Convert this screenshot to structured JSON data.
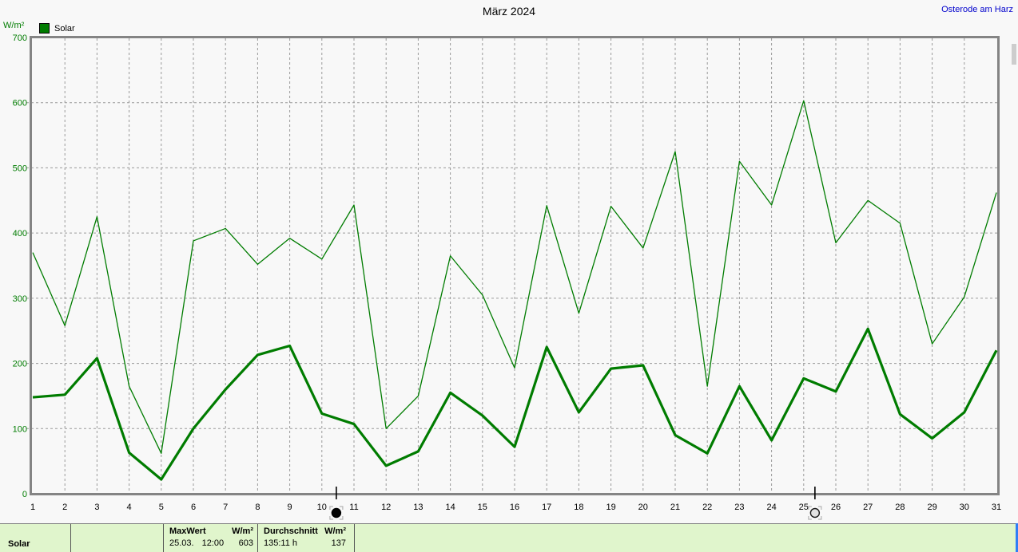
{
  "header": {
    "title": "März 2024",
    "station": "Osterode am Harz"
  },
  "legend": {
    "label": "Solar"
  },
  "axis": {
    "unit": "W/m²"
  },
  "chart_data": {
    "type": "line",
    "title": "März 2024",
    "ylabel": "W/m²",
    "xlabel": "",
    "ylim": [
      0,
      700
    ],
    "y_tick_step": 100,
    "grid": true,
    "legend_position": "top-left",
    "x": [
      1,
      2,
      3,
      4,
      5,
      6,
      7,
      8,
      9,
      10,
      11,
      12,
      13,
      14,
      15,
      16,
      17,
      18,
      19,
      20,
      21,
      22,
      23,
      24,
      25,
      26,
      27,
      28,
      29,
      30,
      31
    ],
    "series": [
      {
        "name": "Solar Maximum",
        "style": "thin",
        "color": "#007c00",
        "values": [
          370,
          258,
          425,
          165,
          62,
          388,
          407,
          352,
          392,
          360,
          443,
          100,
          150,
          365,
          305,
          193,
          442,
          277,
          441,
          377,
          525,
          165,
          510,
          443,
          603,
          385,
          450,
          415,
          230,
          302,
          462
        ]
      },
      {
        "name": "Solar Durchschnitt",
        "style": "thick",
        "color": "#007c00",
        "values": [
          148,
          152,
          208,
          63,
          22,
          100,
          160,
          213,
          227,
          123,
          107,
          43,
          65,
          155,
          120,
          72,
          225,
          125,
          192,
          197,
          90,
          62,
          165,
          82,
          177,
          157,
          253,
          122,
          85,
          125,
          220
        ]
      }
    ],
    "moon_markers": [
      {
        "day": 10.45,
        "phase": "new"
      },
      {
        "day": 25.35,
        "phase": "full"
      }
    ]
  },
  "table": {
    "row_label": "Solar",
    "max": {
      "label": "MaxWert",
      "unit": "W/m²",
      "date": "25.03.",
      "time": "12:00",
      "value": "603"
    },
    "avg": {
      "label": "Durchschnitt",
      "unit": "W/m²",
      "duration": "135:11 h",
      "value": "137"
    }
  },
  "colors": {
    "line": "#007c00",
    "axis_label": "#007c00",
    "grid": "#9a9a9a",
    "border": "#848484",
    "station_link": "#0000cc",
    "table_bg": "#e0f5cc"
  }
}
